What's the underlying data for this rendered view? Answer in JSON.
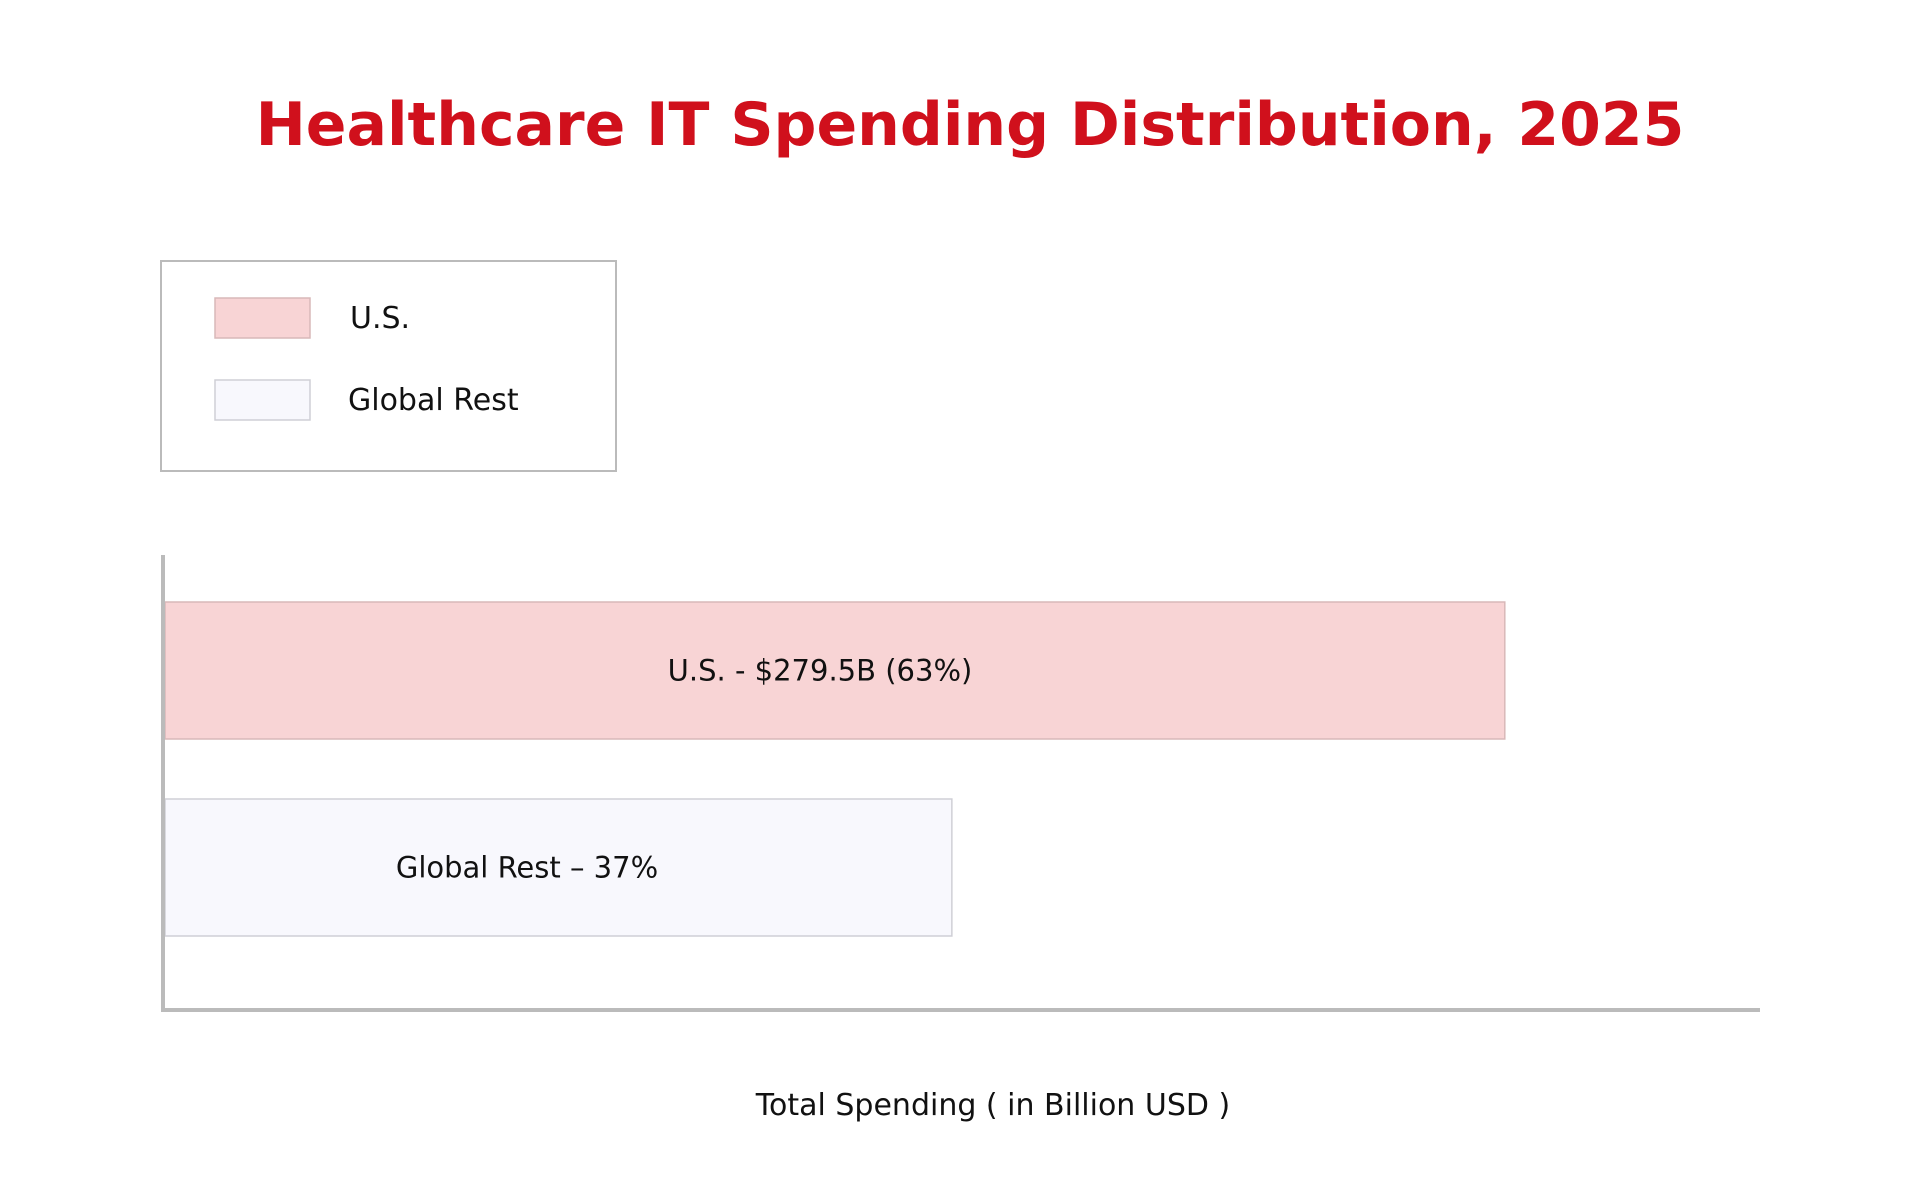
{
  "chart_data": {
    "type": "bar",
    "orientation": "horizontal",
    "title": "Healthcare IT Spending Distribution, 2025",
    "xlabel": "Total Spending ( in Billion USD )",
    "ylabel": "",
    "categories": [
      "U.S.",
      "Global Rest"
    ],
    "values": [
      63,
      37
    ],
    "data_labels": [
      "U.S. - $279.5B (63%)",
      "Global Rest – 37%"
    ],
    "xlim": [
      0,
      75
    ],
    "grid": false,
    "legend": {
      "position": "top-left",
      "entries": [
        "U.S.",
        "Global Rest"
      ]
    }
  },
  "colors": {
    "title": "#d0101c",
    "us_fill": "#f8d4d5",
    "us_stroke": "#d8b8b9",
    "rest_fill": "#f8f8fd",
    "rest_stroke": "#cfcfd6",
    "axis": "#bbbbbb",
    "text": "#111111",
    "legend_border": "#bbbbbb"
  }
}
